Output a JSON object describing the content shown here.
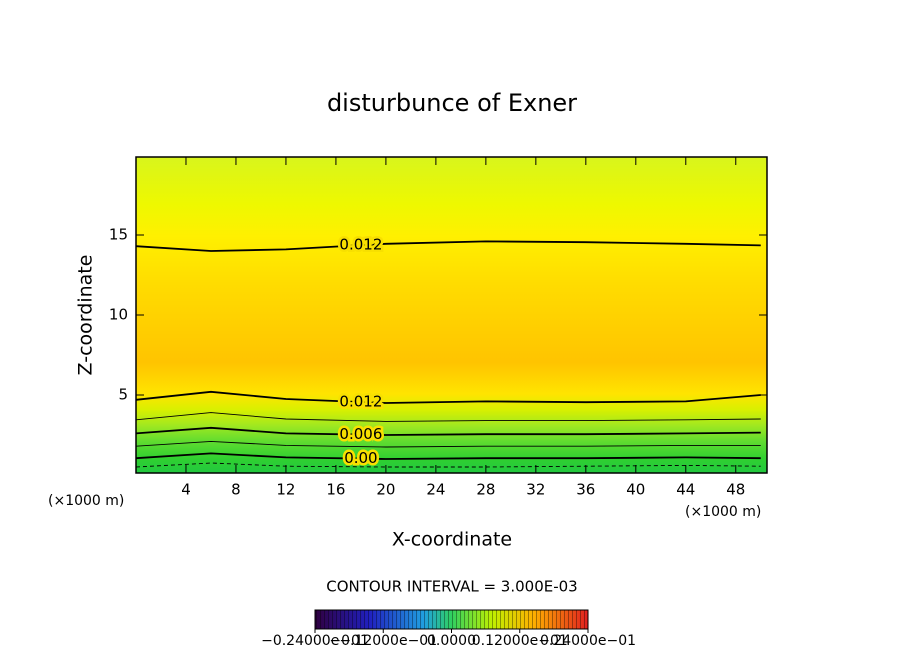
{
  "chart_data": {
    "type": "contour",
    "title": "disturbunce of Exner",
    "xlabel": "X-coordinate",
    "ylabel": "Z-coordinate",
    "x_unit_label": "(×1000 m)",
    "xlim": [
      0,
      50.5
    ],
    "ylim": [
      0.125,
      19.875
    ],
    "xticks": [
      4,
      8,
      12,
      16,
      20,
      24,
      28,
      32,
      36,
      40,
      44,
      48
    ],
    "yticks": [
      5,
      10,
      15
    ],
    "x": [
      0,
      6,
      12,
      20,
      28,
      36,
      44,
      50
    ],
    "contours": [
      {
        "level": 0.012,
        "label": "0.012",
        "z": [
          14.3,
          14.0,
          14.1,
          14.45,
          14.6,
          14.55,
          14.45,
          14.35
        ]
      },
      {
        "level": 0.012,
        "label": "0.012",
        "z": [
          4.7,
          5.2,
          4.75,
          4.5,
          4.6,
          4.55,
          4.6,
          5.0
        ]
      },
      {
        "level": 0.009,
        "z": [
          3.45,
          3.9,
          3.5,
          3.35,
          3.4,
          3.4,
          3.45,
          3.5
        ]
      },
      {
        "level": 0.006,
        "label": "0.006",
        "z": [
          2.6,
          2.95,
          2.6,
          2.5,
          2.55,
          2.55,
          2.6,
          2.65
        ]
      },
      {
        "level": 0.003,
        "z": [
          1.8,
          2.1,
          1.85,
          1.75,
          1.8,
          1.8,
          1.85,
          1.85
        ]
      },
      {
        "level": 0.0,
        "label": "0.00",
        "z": [
          1.05,
          1.35,
          1.1,
          1.0,
          1.05,
          1.05,
          1.1,
          1.05
        ]
      },
      {
        "level": -0.003,
        "z": [
          0.5,
          0.75,
          0.55,
          0.5,
          0.5,
          0.55,
          0.6,
          0.55
        ]
      }
    ],
    "footer": "CONTOUR INTERVAL = 3.000E-03",
    "colorbar": {
      "lim": [
        -0.024,
        0.024
      ],
      "ticks": [
        {
          "value": -0.024,
          "label": "−0.24000e−01"
        },
        {
          "value": -0.012,
          "label": "−0.12000e−01"
        },
        {
          "value": 0,
          "label": "0.0000"
        },
        {
          "value": 0.012,
          "label": "0.12000e−01"
        },
        {
          "value": 0.024,
          "label": "0.24000e−01"
        }
      ]
    }
  }
}
